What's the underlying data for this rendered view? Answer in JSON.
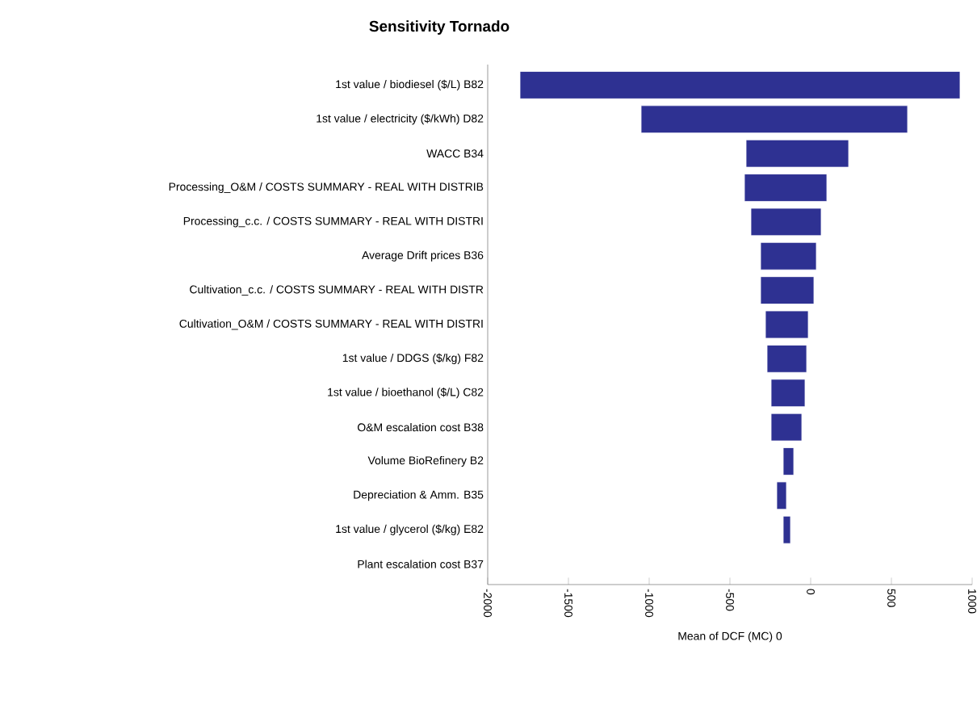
{
  "chart_data": {
    "type": "bar",
    "orientation": "horizontal",
    "title": "Sensitivity Tornado",
    "xlabel": "Mean of DCF (MC) 0",
    "categories": [
      "1st value / biodiesel ($/L) B82",
      "1st value / electricity ($/kWh) D82",
      "WACC B34",
      "Processing_O&M / COSTS SUMMARY - REAL WITH DISTRIB",
      "Processing_c.c. / COSTS SUMMARY - REAL WITH DISTRI",
      "Average Drift prices B36",
      "Cultivation_c.c. / COSTS SUMMARY - REAL WITH DISTR",
      "Cultivation_O&M / COSTS SUMMARY - REAL WITH DISTRI",
      "1st value / DDGS ($/kg) F82",
      "1st value / bioethanol ($/L) C82",
      "O&M escalation cost B38",
      "Volume BioRefinery B2",
      "Depreciation & Amm. B35",
      "1st value / glycerol ($/kg) E82",
      "Plant escalation cost B37"
    ],
    "base": [
      -1800,
      -1050,
      -400,
      -410,
      -370,
      -310,
      -310,
      -280,
      -270,
      -245,
      -245,
      -170,
      -210,
      -170,
      null
    ],
    "values": [
      2725,
      1650,
      635,
      510,
      435,
      345,
      330,
      265,
      245,
      210,
      190,
      65,
      60,
      45,
      null
    ],
    "color": "#2e3192",
    "xlim": [
      -2000,
      1000
    ],
    "xticks": [
      -2000,
      -1500,
      -1000,
      -500,
      0,
      500,
      1000
    ],
    "grid": false
  }
}
